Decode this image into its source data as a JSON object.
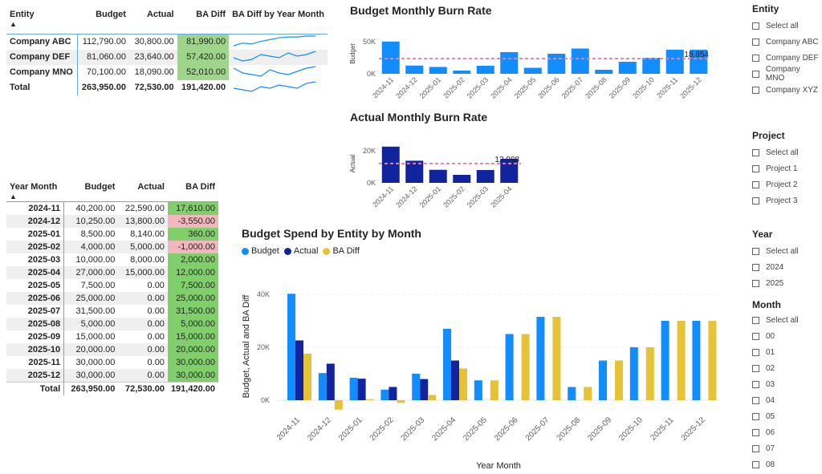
{
  "colors": {
    "budget": "#118dff",
    "actual": "#12239e",
    "badiff": "#e6c336",
    "green": "#9fd48b",
    "red": "#f4b6be",
    "ref": "#e8829a"
  },
  "entity_table": {
    "headers": [
      "Entity",
      "Budget",
      "Actual",
      "BA Diff",
      "BA Diff by Year Month"
    ],
    "rows": [
      {
        "entity": "Company ABC",
        "budget": "112,790.00",
        "actual": "30,800.00",
        "diff": "81,990.00",
        "spark": [
          2,
          5,
          4,
          7,
          9,
          11,
          12,
          12,
          13,
          13
        ]
      },
      {
        "entity": "Company DEF",
        "budget": "81,060.00",
        "actual": "23,640.00",
        "diff": "57,420.00",
        "spark": [
          6,
          4,
          5,
          8,
          7,
          6,
          9,
          7,
          8,
          10
        ]
      },
      {
        "entity": "Company MNO",
        "budget": "70,100.00",
        "actual": "18,090.00",
        "diff": "52,010.00",
        "spark": [
          9,
          6,
          5,
          4,
          8,
          6,
          5,
          7,
          9,
          10
        ]
      }
    ],
    "total": {
      "label": "Total",
      "budget": "263,950.00",
      "actual": "72,530.00",
      "diff": "191,420.00",
      "spark": [
        4,
        3,
        2,
        5,
        4,
        6,
        5,
        4,
        7,
        8
      ]
    }
  },
  "month_table": {
    "headers": [
      "Year Month",
      "Budget",
      "Actual",
      "BA Diff"
    ],
    "rows": [
      {
        "ym": "2024-11",
        "budget": "40,200.00",
        "actual": "22,590.00",
        "diff": "17,610.00",
        "sign": "pos"
      },
      {
        "ym": "2024-12",
        "budget": "10,250.00",
        "actual": "13,800.00",
        "diff": "-3,550.00",
        "sign": "neg"
      },
      {
        "ym": "2025-01",
        "budget": "8,500.00",
        "actual": "8,140.00",
        "diff": "360.00",
        "sign": "pos"
      },
      {
        "ym": "2025-02",
        "budget": "4,000.00",
        "actual": "5,000.00",
        "diff": "-1,000.00",
        "sign": "neg"
      },
      {
        "ym": "2025-03",
        "budget": "10,000.00",
        "actual": "8,000.00",
        "diff": "2,000.00",
        "sign": "pos"
      },
      {
        "ym": "2025-04",
        "budget": "27,000.00",
        "actual": "15,000.00",
        "diff": "12,000.00",
        "sign": "pos"
      },
      {
        "ym": "2025-05",
        "budget": "7,500.00",
        "actual": "0.00",
        "diff": "7,500.00",
        "sign": "pos"
      },
      {
        "ym": "2025-06",
        "budget": "25,000.00",
        "actual": "0.00",
        "diff": "25,000.00",
        "sign": "pos"
      },
      {
        "ym": "2025-07",
        "budget": "31,500.00",
        "actual": "0.00",
        "diff": "31,500.00",
        "sign": "pos"
      },
      {
        "ym": "2025-08",
        "budget": "5,000.00",
        "actual": "0.00",
        "diff": "5,000.00",
        "sign": "pos"
      },
      {
        "ym": "2025-09",
        "budget": "15,000.00",
        "actual": "0.00",
        "diff": "15,000.00",
        "sign": "pos"
      },
      {
        "ym": "2025-10",
        "budget": "20,000.00",
        "actual": "0.00",
        "diff": "20,000.00",
        "sign": "pos"
      },
      {
        "ym": "2025-11",
        "budget": "30,000.00",
        "actual": "0.00",
        "diff": "30,000.00",
        "sign": "pos"
      },
      {
        "ym": "2025-12",
        "budget": "30,000.00",
        "actual": "0.00",
        "diff": "30,000.00",
        "sign": "pos"
      }
    ],
    "total": {
      "label": "Total",
      "budget": "263,950.00",
      "actual": "72,530.00",
      "diff": "191,420.00"
    }
  },
  "chart_data": [
    {
      "type": "bar",
      "title": "Budget Monthly Burn Rate",
      "ylabel": "Budget",
      "categories": [
        "2024-11",
        "2024-12",
        "2025-01",
        "2025-02",
        "2025-03",
        "2025-04",
        "2025-05",
        "2025-06",
        "2025-07",
        "2025-08",
        "2025-09",
        "2025-10",
        "2025-11",
        "2025-12"
      ],
      "values": [
        40200,
        10250,
        8500,
        4000,
        10000,
        27000,
        7500,
        25000,
        31500,
        5000,
        15000,
        20000,
        30000,
        30000
      ],
      "ylim": [
        0,
        50000
      ],
      "yticks": [
        "0K",
        "50K"
      ],
      "reference_line": 18854,
      "reference_label": "18,854"
    },
    {
      "type": "bar",
      "title": "Actual Monthly Burn Rate",
      "ylabel": "Actual",
      "categories": [
        "2024-11",
        "2024-12",
        "2025-01",
        "2025-02",
        "2025-03",
        "2025-04"
      ],
      "values": [
        22590,
        13800,
        8140,
        5000,
        8000,
        15000
      ],
      "ylim": [
        0,
        24000
      ],
      "yticks": [
        "0K",
        "20K"
      ],
      "reference_line": 12088,
      "reference_label": "12,088"
    },
    {
      "type": "bar",
      "title": "Budget Spend by Entity by Month",
      "xlabel": "Year Month",
      "ylabel": "Budget, Actual and BA Diff",
      "categories": [
        "2024-11",
        "2024-12",
        "2025-01",
        "2025-02",
        "2025-03",
        "2025-04",
        "2025-05",
        "2025-06",
        "2025-07",
        "2025-08",
        "2025-09",
        "2025-10",
        "2025-11",
        "2025-12"
      ],
      "series": [
        {
          "name": "Budget",
          "values": [
            40200,
            10250,
            8500,
            4000,
            10000,
            27000,
            7500,
            25000,
            31500,
            5000,
            15000,
            20000,
            30000,
            30000
          ]
        },
        {
          "name": "Actual",
          "values": [
            22590,
            13800,
            8140,
            5000,
            8000,
            15000,
            0,
            0,
            0,
            0,
            0,
            0,
            0,
            0
          ]
        },
        {
          "name": "BA Diff",
          "values": [
            17610,
            -3550,
            360,
            -1000,
            2000,
            12000,
            7500,
            25000,
            31500,
            5000,
            15000,
            20000,
            30000,
            30000
          ]
        }
      ],
      "ylim": [
        -5000,
        42000
      ],
      "yticks": [
        "0K",
        "20K",
        "40K"
      ],
      "legend_position": "top-left"
    }
  ],
  "slicers": {
    "entity": {
      "title": "Entity",
      "items": [
        "Select all",
        "Company ABC",
        "Company DEF",
        "Company MNO",
        "Company XYZ"
      ]
    },
    "project": {
      "title": "Project",
      "items": [
        "Select all",
        "Project 1",
        "Project 2",
        "Project 3"
      ]
    },
    "year": {
      "title": "Year",
      "items": [
        "Select all",
        "2024",
        "2025"
      ]
    },
    "month": {
      "title": "Month",
      "items": [
        "Select all",
        "00",
        "01",
        "02",
        "03",
        "04",
        "05",
        "06",
        "07",
        "08"
      ]
    }
  }
}
